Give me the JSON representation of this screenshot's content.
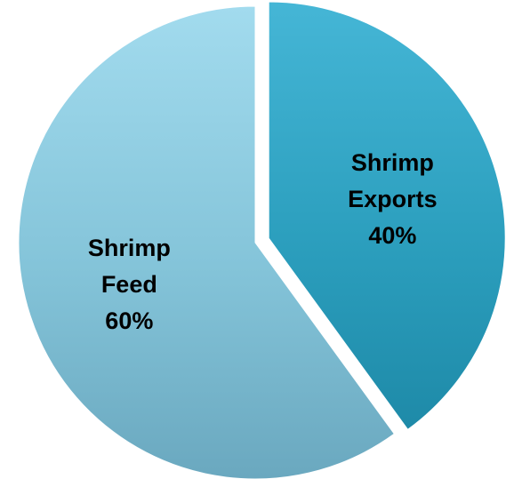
{
  "chart_data": {
    "type": "pie",
    "title": "",
    "slices": [
      {
        "label_lines": [
          "Shrimp",
          "Exports"
        ],
        "percent_label": "40%",
        "value": 40,
        "color": "#2f9fbe",
        "exploded": true
      },
      {
        "label_lines": [
          "Shrimp",
          "Feed"
        ],
        "percent_label": "60%",
        "value": 60,
        "color": "#7fc6df",
        "exploded": false
      }
    ]
  }
}
